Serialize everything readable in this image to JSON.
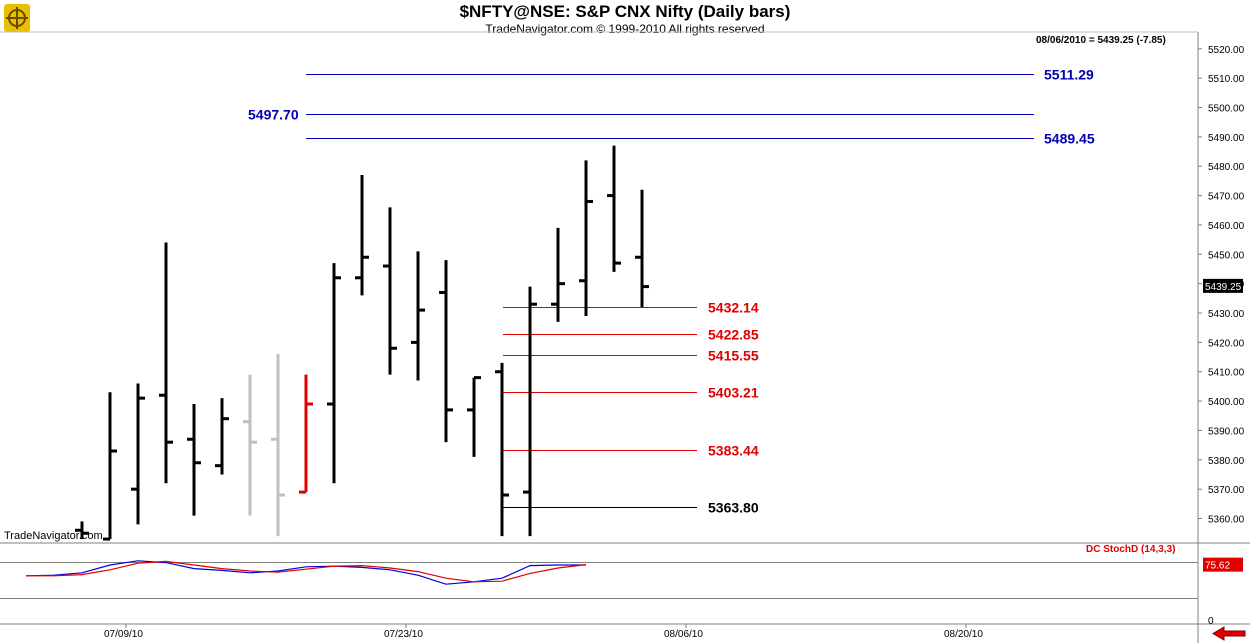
{
  "header": {
    "title": "$NFTY@NSE:  S&P CNX Nifty  (Daily bars)",
    "subtitle": "TradeNavigator.com © 1999-2010 All rights reserved"
  },
  "quote": "08/06/2010 = 5439.25 (-7.85)",
  "brand_label": "TradeNavigator.com",
  "indicator_label": "DC StochD (14,3,3)",
  "logo_icon": "ship-wheel-logo-icon",
  "nav_icon": "left-arrow-icon",
  "colors": {
    "bar": "#000000",
    "bar_gray": "#c0c0c0",
    "bar_red": "#e00000",
    "blue_level": "#0000b0",
    "red_level": "#e00000",
    "stoch_blue": "#0000e0",
    "stoch_red": "#e00000"
  },
  "chart_data": [
    {
      "type": "ohlc",
      "ylim": [
        5352,
        5523
      ],
      "y_ticks": [
        "5520.00",
        "5510.00",
        "5500.00",
        "5490.00",
        "5480.00",
        "5470.00",
        "5460.00",
        "5450.00",
        "5440.00",
        "5430.00",
        "5420.00",
        "5410.00",
        "5400.00",
        "5390.00",
        "5380.00",
        "5370.00",
        "5360.00"
      ],
      "y_tick_values": [
        5520,
        5510,
        5500,
        5490,
        5480,
        5470,
        5460,
        5450,
        5440,
        5430,
        5420,
        5410,
        5400,
        5390,
        5380,
        5370,
        5360
      ],
      "last_price_label": "5439.25",
      "last_price": 5439.25,
      "x_labels": [
        {
          "label": "07/09/10",
          "index": 2
        },
        {
          "label": "07/23/10",
          "index": 12
        },
        {
          "label": "08/06/10",
          "index": 22
        },
        {
          "label": "08/20/10",
          "index": 32
        }
      ],
      "bars": [
        {
          "o": 5356,
          "h": 5359,
          "l": 5353,
          "c": 5355,
          "color": "black"
        },
        {
          "o": 5353,
          "h": 5403,
          "l": 5353,
          "c": 5383,
          "color": "black"
        },
        {
          "o": 5370,
          "h": 5406,
          "l": 5358,
          "c": 5401,
          "color": "black"
        },
        {
          "o": 5402,
          "h": 5454,
          "l": 5372,
          "c": 5386,
          "color": "black"
        },
        {
          "o": 5387,
          "h": 5399,
          "l": 5361,
          "c": 5379,
          "color": "black"
        },
        {
          "o": 5378,
          "h": 5401,
          "l": 5375,
          "c": 5394,
          "color": "black"
        },
        {
          "o": 5393,
          "h": 5409,
          "l": 5361,
          "c": 5386,
          "color": "gray"
        },
        {
          "o": 5387,
          "h": 5416,
          "l": 5354,
          "c": 5368,
          "color": "gray"
        },
        {
          "o": 5369,
          "h": 5409,
          "l": 5369,
          "c": 5399,
          "color": "red"
        },
        {
          "o": 5399,
          "h": 5447,
          "l": 5372,
          "c": 5442,
          "color": "black"
        },
        {
          "o": 5442,
          "h": 5477,
          "l": 5436,
          "c": 5449,
          "color": "black"
        },
        {
          "o": 5446,
          "h": 5466,
          "l": 5409,
          "c": 5418,
          "color": "black"
        },
        {
          "o": 5420,
          "h": 5451,
          "l": 5407,
          "c": 5431,
          "color": "black"
        },
        {
          "o": 5437,
          "h": 5448,
          "l": 5386,
          "c": 5397,
          "color": "black"
        },
        {
          "o": 5397,
          "h": 5408,
          "l": 5381,
          "c": 5408,
          "color": "black"
        },
        {
          "o": 5410,
          "h": 5413,
          "l": 5354,
          "c": 5368,
          "color": "black"
        },
        {
          "o": 5369,
          "h": 5439,
          "l": 5354,
          "c": 5433,
          "color": "black"
        },
        {
          "o": 5433,
          "h": 5459,
          "l": 5427,
          "c": 5440,
          "color": "black"
        },
        {
          "o": 5441,
          "h": 5482,
          "l": 5429,
          "c": 5468,
          "color": "black"
        },
        {
          "o": 5470,
          "h": 5487,
          "l": 5444,
          "c": 5447,
          "color": "black"
        },
        {
          "o": 5449,
          "h": 5472,
          "l": 5432,
          "c": 5439,
          "color": "black"
        }
      ],
      "levels": [
        {
          "value": 5511.29,
          "label": "5511.29",
          "color": "blue",
          "label_side": "right",
          "from_index": 9
        },
        {
          "value": 5497.7,
          "label": "5497.70",
          "color": "blue",
          "label_side": "left",
          "from_index": 9
        },
        {
          "value": 5489.45,
          "label": "5489.45",
          "color": "blue",
          "label_side": "right",
          "from_index": 9
        },
        {
          "value": 5432.14,
          "label": "5432.14",
          "color": "red",
          "label_side": "right",
          "from_index": 15
        },
        {
          "value": 5422.85,
          "label": "5422.85",
          "color": "red",
          "label_side": "right",
          "from_index": 15
        },
        {
          "value": 5415.55,
          "label": "5415.55",
          "color": "red",
          "label_side": "right",
          "from_index": 15
        },
        {
          "value": 5403.21,
          "label": "5403.21",
          "color": "red",
          "label_side": "right",
          "from_index": 15
        },
        {
          "value": 5383.44,
          "label": "5383.44",
          "color": "red",
          "label_side": "right",
          "from_index": 15
        },
        {
          "value": 5363.8,
          "label": "5363.80",
          "color": "black",
          "label_side": "right",
          "from_index": 15
        }
      ]
    },
    {
      "type": "line",
      "title": "DC StochD (14,3,3)",
      "ylim": [
        0,
        100
      ],
      "y_ticks": [
        "0"
      ],
      "last_value_label": "75.62",
      "overbought": 80,
      "oversold": 20,
      "series": [
        {
          "color": "blue",
          "values": [
            57,
            58,
            62,
            75,
            82,
            79,
            69,
            66,
            62,
            65,
            72,
            73,
            71,
            67,
            58,
            43,
            47,
            53,
            74,
            75,
            75
          ]
        },
        {
          "color": "red",
          "values": [
            57,
            57,
            59,
            67,
            78,
            81,
            75,
            69,
            65,
            63,
            68,
            73,
            74,
            70,
            64,
            53,
            47,
            48,
            61,
            70,
            75.62
          ]
        }
      ]
    }
  ]
}
